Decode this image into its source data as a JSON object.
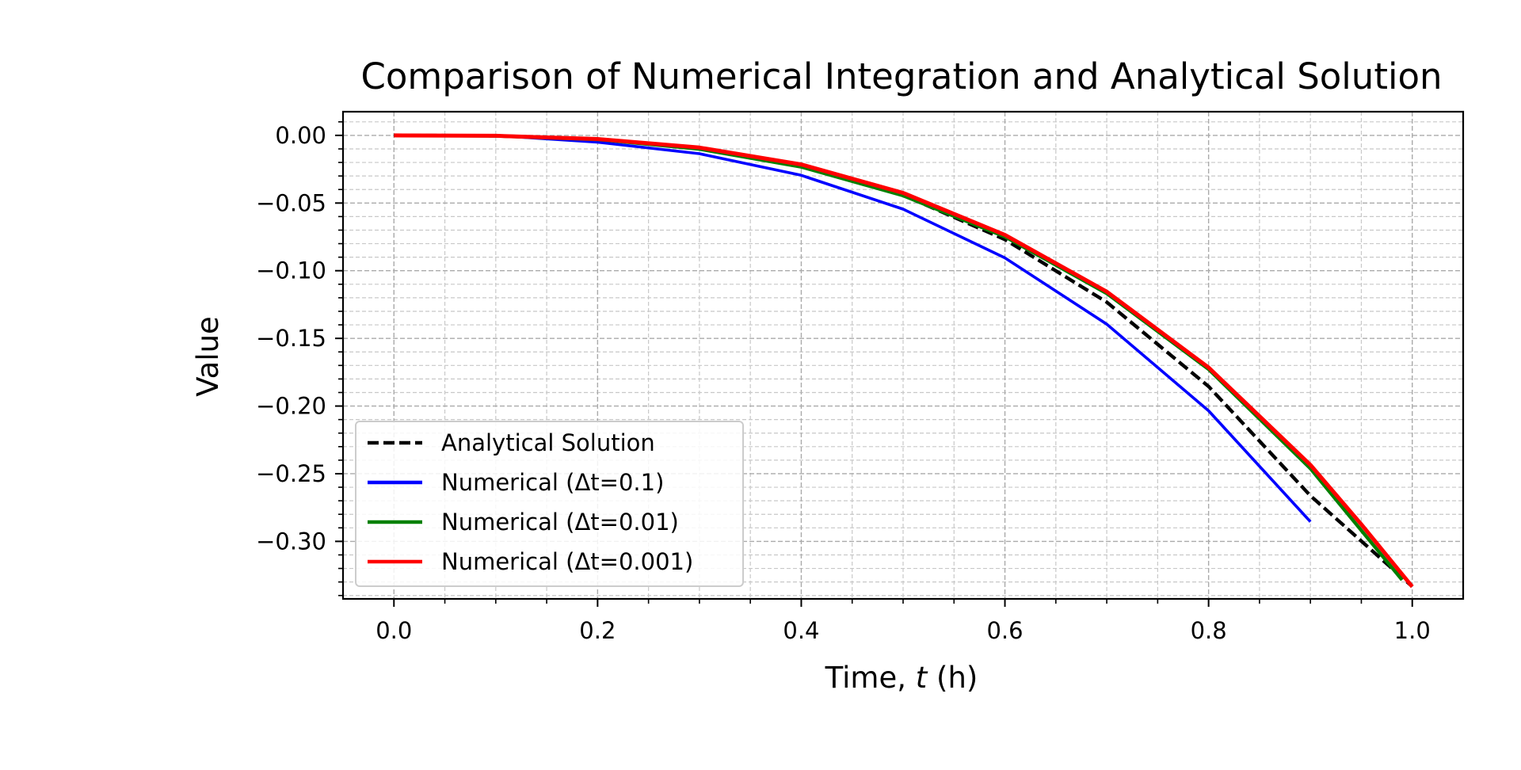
{
  "chart_data": {
    "type": "line",
    "title": "Comparison of Numerical Integration and Analytical Solution",
    "xlabel_prefix": "Time, ",
    "xlabel_var": "t",
    "xlabel_suffix": " (h)",
    "ylabel": "Value",
    "xlim": [
      -0.05,
      1.05
    ],
    "ylim": [
      -0.3425,
      0.0175
    ],
    "xticks": [
      0.0,
      0.2,
      0.4,
      0.6,
      0.8,
      1.0
    ],
    "xtick_labels": [
      "0.0",
      "0.2",
      "0.4",
      "0.6",
      "0.8",
      "1.0"
    ],
    "xticks_minor": [
      0.05,
      0.1,
      0.15,
      0.25,
      0.3,
      0.35,
      0.45,
      0.5,
      0.55,
      0.65,
      0.7,
      0.75,
      0.85,
      0.9,
      0.95
    ],
    "yticks": [
      0.0,
      -0.05,
      -0.1,
      -0.15,
      -0.2,
      -0.25,
      -0.3
    ],
    "ytick_labels": [
      "0.00",
      "−0.05",
      "−0.10",
      "−0.15",
      "−0.20",
      "−0.25",
      "−0.30"
    ],
    "yticks_minor": [
      0.01,
      -0.01,
      -0.02,
      -0.03,
      -0.04,
      -0.06,
      -0.07,
      -0.08,
      -0.09,
      -0.11,
      -0.12,
      -0.13,
      -0.14,
      -0.16,
      -0.17,
      -0.18,
      -0.19,
      -0.21,
      -0.22,
      -0.23,
      -0.24,
      -0.26,
      -0.27,
      -0.28,
      -0.29,
      -0.31,
      -0.32,
      -0.33,
      -0.34
    ],
    "grid": "major and minor, dashed",
    "legend_position": "lower-left",
    "series": [
      {
        "name": "Analytical Solution",
        "color": "#000000",
        "style": "dashed",
        "x": [
          0.0,
          0.1,
          0.2,
          0.3,
          0.4,
          0.5,
          0.6,
          0.7,
          0.8,
          0.9,
          1.0
        ],
        "y": [
          0.0,
          -0.0003,
          -0.0027,
          -0.0093,
          -0.0223,
          -0.0441,
          -0.0769,
          -0.1232,
          -0.1855,
          -0.2663,
          -0.3333
        ]
      },
      {
        "name": "Numerical (Δt=0.1)",
        "color": "#0000ff",
        "style": "solid",
        "x": [
          0.0,
          0.1,
          0.2,
          0.3,
          0.4,
          0.5,
          0.6,
          0.7,
          0.8,
          0.9
        ],
        "y": [
          0.0,
          -0.0001,
          -0.005,
          -0.0135,
          -0.0295,
          -0.0545,
          -0.0905,
          -0.1395,
          -0.2035,
          -0.2855
        ]
      },
      {
        "name": "Numerical (Δt=0.01)",
        "color": "#008000",
        "style": "solid",
        "x": [
          0.0,
          0.1,
          0.2,
          0.3,
          0.4,
          0.5,
          0.6,
          0.7,
          0.8,
          0.9,
          0.99
        ],
        "y": [
          0.0,
          -0.0004,
          -0.003,
          -0.0101,
          -0.0233,
          -0.0445,
          -0.0749,
          -0.1168,
          -0.1728,
          -0.2462,
          -0.3285
        ]
      },
      {
        "name": "Numerical (Δt=0.001)",
        "color": "#ff0000",
        "style": "solid",
        "x": [
          0.0,
          0.1,
          0.2,
          0.3,
          0.4,
          0.5,
          0.6,
          0.7,
          0.8,
          0.9,
          0.95,
          1.0
        ],
        "y": [
          0.0,
          -0.0003,
          -0.0027,
          -0.009,
          -0.0215,
          -0.0425,
          -0.0735,
          -0.1155,
          -0.1715,
          -0.2435,
          -0.2875,
          -0.3335
        ]
      }
    ]
  }
}
